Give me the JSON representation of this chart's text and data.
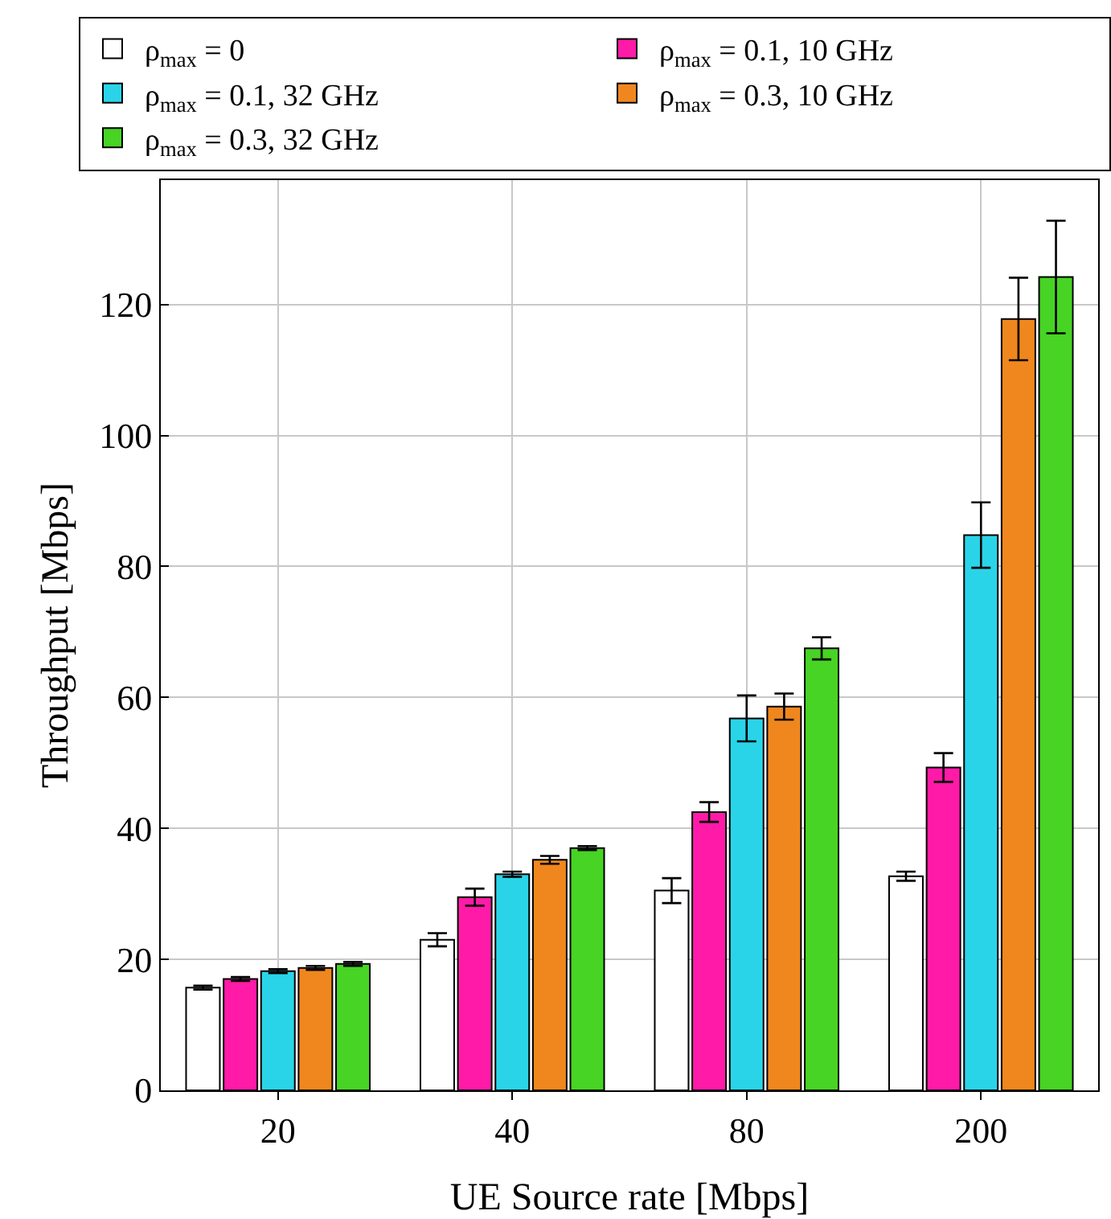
{
  "chart_data": {
    "type": "bar",
    "xlabel": "UE Source rate [Mbps]",
    "ylabel": "Throughput [Mbps]",
    "categories": [
      "20",
      "40",
      "80",
      "200"
    ],
    "series": [
      {
        "name": "ρ$_{max}$ = 0",
        "color": "#ffffff",
        "values": [
          15.7,
          23,
          30.5,
          32.7
        ],
        "errors": [
          0.3,
          1,
          1.9,
          0.7
        ]
      },
      {
        "name": "ρ$_{max}$ = 0.1, 10 GHz",
        "color": "#ff1aa8",
        "values": [
          17,
          29.5,
          42.5,
          49.3
        ],
        "errors": [
          0.3,
          1.3,
          1.5,
          2.2
        ]
      },
      {
        "name": "ρ$_{max}$ = 0.1, 32 GHz",
        "color": "#2ad4e8",
        "values": [
          18.2,
          33,
          56.8,
          84.8
        ],
        "errors": [
          0.3,
          0.4,
          3.5,
          5
        ]
      },
      {
        "name": "ρ$_{max}$ = 0.3, 10 GHz",
        "color": "#f0871e",
        "values": [
          18.7,
          35.2,
          58.6,
          117.8
        ],
        "errors": [
          0.3,
          0.6,
          2,
          6.3
        ]
      },
      {
        "name": "ρ$_{max}$ = 0.3, 32 GHz",
        "color": "#47d424",
        "values": [
          19.3,
          37,
          67.5,
          124.2
        ],
        "errors": [
          0.3,
          0.3,
          1.7,
          8.6
        ]
      }
    ],
    "ylim": [
      0,
      139
    ],
    "yticks": [
      0,
      20,
      40,
      60,
      80,
      100,
      120
    ],
    "grid": true,
    "legend": "top"
  }
}
